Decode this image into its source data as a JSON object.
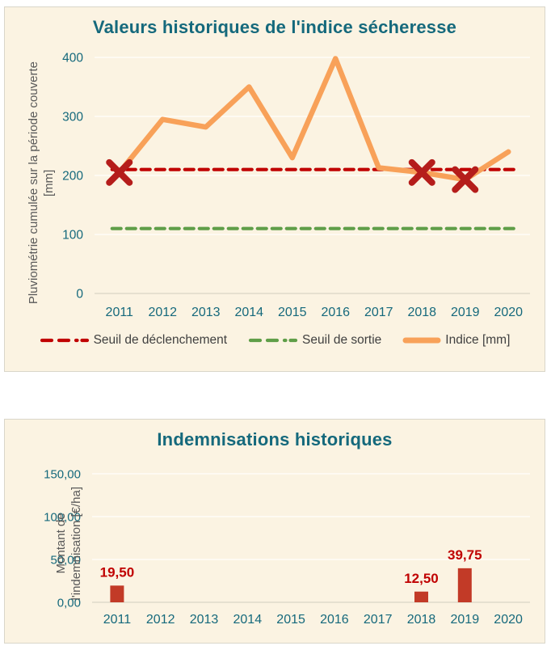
{
  "colors": {
    "panel_bg": "#FBF3E2",
    "panel_border": "#D9D6CA",
    "teal": "#15697C",
    "axis_label_gray": "#595959",
    "legend_text": "#404040",
    "grid_white": "#FFFDF8",
    "baseline_gray": "#DFD9C9",
    "orange": "#F8A159",
    "threshold_red": "#C00000",
    "marker_red": "#B51D1B",
    "exit_green": "#5F9E48",
    "bar_red": "#C23A27",
    "bar_label_red": "#C00000"
  },
  "chart_data": [
    {
      "type": "line",
      "title": "Valeurs historiques de l'indice sécheresse",
      "ylabel": "Pluviométrie cumulée sur la période couverte [mm]",
      "ylabel_lines": [
        "Pluviométrie cumulée sur la période couverte",
        "[mm]"
      ],
      "xlabel": "",
      "categories": [
        "2011",
        "2012",
        "2013",
        "2014",
        "2015",
        "2016",
        "2017",
        "2018",
        "2019",
        "2020"
      ],
      "series": [
        {
          "name": "Seuil de déclenchement",
          "style": "dashed",
          "value": 210,
          "color": "#C00000"
        },
        {
          "name": "Seuil de sortie",
          "style": "dashed",
          "value": 110,
          "color": "#5F9E48"
        },
        {
          "name": "Indice [mm]",
          "style": "solid",
          "color": "#F8A159",
          "values": [
            205,
            295,
            282,
            350,
            230,
            398,
            213,
            205,
            193,
            240
          ]
        }
      ],
      "markers": {
        "name": "trigger-marker",
        "shape": "x-cross",
        "color": "#B51D1B",
        "categories": [
          "2011",
          "2018",
          "2019"
        ],
        "values": [
          205,
          205,
          193
        ]
      },
      "ylim": [
        0,
        400
      ],
      "yticks": [
        0,
        100,
        200,
        300,
        400
      ],
      "ytick_labels": [
        "0",
        "100",
        "200",
        "300",
        "400"
      ],
      "grid": true,
      "legend_position": "bottom",
      "legend_items": [
        {
          "label": "Seuil de déclenchement",
          "style": "dashed",
          "color": "#C00000"
        },
        {
          "label": "Seuil de sortie",
          "style": "dashed",
          "color": "#5F9E48"
        },
        {
          "label": "Indice [mm]",
          "style": "solid",
          "color": "#F8A159"
        }
      ]
    },
    {
      "type": "bar",
      "title": "Indemnisations historiques",
      "ylabel": "Montant de l'indemnisation [€/ha]",
      "ylabel_lines": [
        "Montant de",
        "l'indemnisation [€/ha]"
      ],
      "xlabel": "",
      "categories": [
        "2011",
        "2012",
        "2013",
        "2014",
        "2015",
        "2016",
        "2017",
        "2018",
        "2019",
        "2020"
      ],
      "values": [
        19.5,
        0,
        0,
        0,
        0,
        0,
        0,
        12.5,
        39.75,
        0
      ],
      "bar_labels": [
        "19,50",
        "",
        "",
        "",
        "",
        "",
        "",
        "12,50",
        "39,75",
        ""
      ],
      "ylim": [
        0,
        150
      ],
      "yticks": [
        0,
        50,
        100,
        150
      ],
      "ytick_labels": [
        "0,00",
        "50,00",
        "100,00",
        "150,00"
      ],
      "grid": true,
      "bar_color": "#C23A27",
      "label_color": "#C00000"
    }
  ]
}
